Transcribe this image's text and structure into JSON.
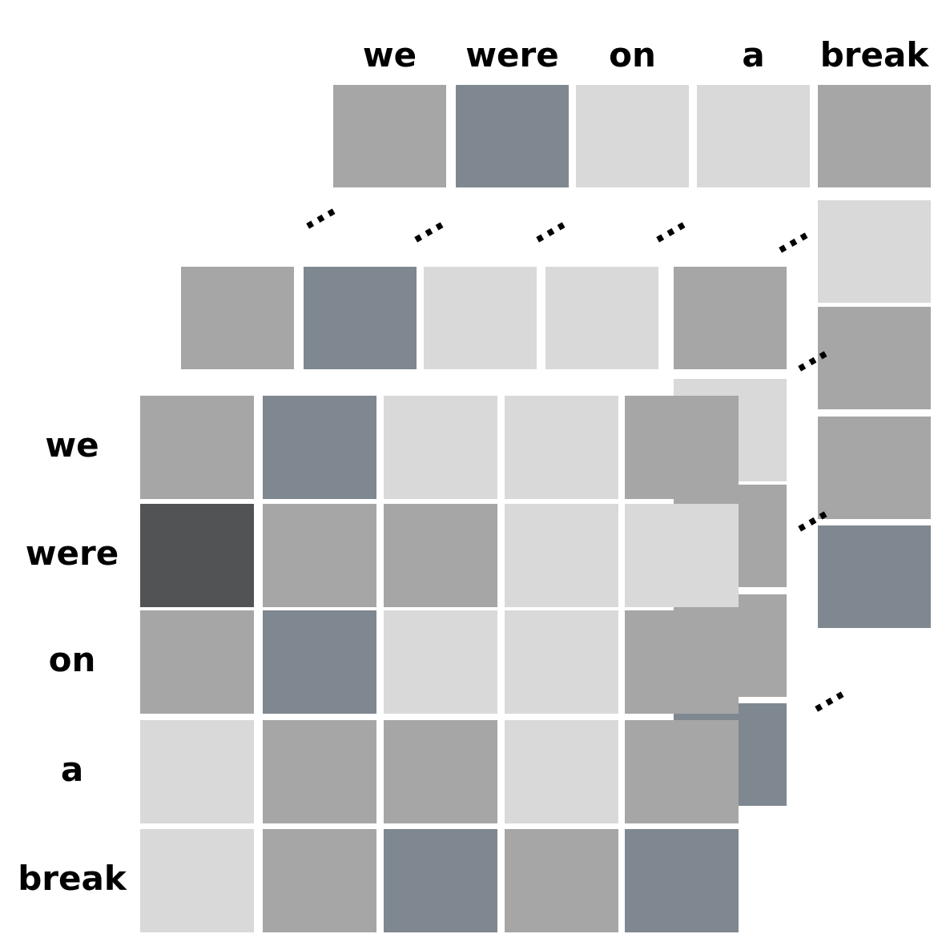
{
  "tokens": [
    "we",
    "were",
    "on",
    "a",
    "break"
  ],
  "palette": {
    "dark": "#525355",
    "slate": "#7f8890",
    "mid": "#a6a6a6",
    "light": "#d9d9d9"
  },
  "ellipsis_glyph": "...",
  "layers": {
    "back": {
      "top_row": [
        "mid",
        "slate",
        "light",
        "light",
        "mid"
      ],
      "right_column": [
        "light",
        "mid",
        "mid",
        "slate"
      ]
    },
    "middle": {
      "top_row": [
        "mid",
        "slate",
        "light",
        "light",
        "mid"
      ],
      "right_column": [
        "light",
        "mid",
        "mid",
        "slate"
      ]
    },
    "front": {
      "matrix": [
        [
          "mid",
          "slate",
          "light",
          "light",
          "mid"
        ],
        [
          "dark",
          "mid",
          "mid",
          "light",
          "light"
        ],
        [
          "mid",
          "slate",
          "light",
          "light",
          "mid"
        ],
        [
          "light",
          "mid",
          "mid",
          "light",
          "mid"
        ],
        [
          "light",
          "mid",
          "slate",
          "mid",
          "slate"
        ]
      ]
    }
  }
}
